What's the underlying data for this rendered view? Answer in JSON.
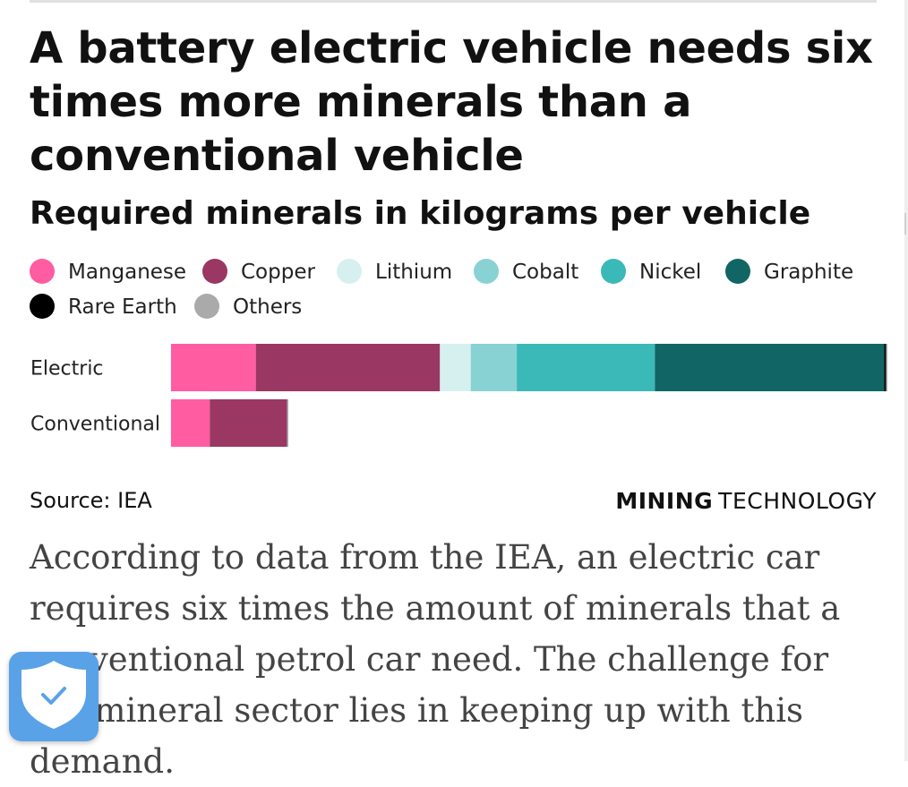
{
  "chart_data": {
    "type": "bar",
    "orientation": "horizontal",
    "stacked": true,
    "title": "A battery electric vehicle needs six times more minerals than a conventional vehicle",
    "subtitle": "Required minerals in kilograms per vehicle",
    "categories": [
      "Electric",
      "Conventional"
    ],
    "series": [
      {
        "name": "Manganese",
        "color": "#ff5ca2",
        "values": [
          24.5,
          11.2
        ]
      },
      {
        "name": "Copper",
        "color": "#9b3763",
        "values": [
          53.2,
          22.3
        ]
      },
      {
        "name": "Lithium",
        "color": "#d6f0ef",
        "values": [
          8.9,
          0
        ]
      },
      {
        "name": "Cobalt",
        "color": "#88d2d3",
        "values": [
          13.3,
          0
        ]
      },
      {
        "name": "Nickel",
        "color": "#3bb8b8",
        "values": [
          39.9,
          0
        ]
      },
      {
        "name": "Graphite",
        "color": "#116565",
        "values": [
          66.3,
          0
        ]
      },
      {
        "name": "Rare Earth",
        "color": "#000000",
        "values": [
          0.5,
          0
        ]
      },
      {
        "name": "Others",
        "color": "#aaaaaa",
        "values": [
          0.3,
          0.3
        ]
      }
    ],
    "xlim": [
      0,
      207
    ],
    "grid": false,
    "legend": "top"
  },
  "source": "Source: IEA",
  "brand": {
    "bold": "MINING",
    "light": "TECHNOLOGY"
  },
  "body_text": "According to data from the IEA, an electric car requires six times the amount of minerals that a conventional petrol car need. The challenge for the mineral sector lies in keeping up with this demand.",
  "badge": {
    "icon": "shield-check-icon",
    "color": "#5aa2e8"
  }
}
